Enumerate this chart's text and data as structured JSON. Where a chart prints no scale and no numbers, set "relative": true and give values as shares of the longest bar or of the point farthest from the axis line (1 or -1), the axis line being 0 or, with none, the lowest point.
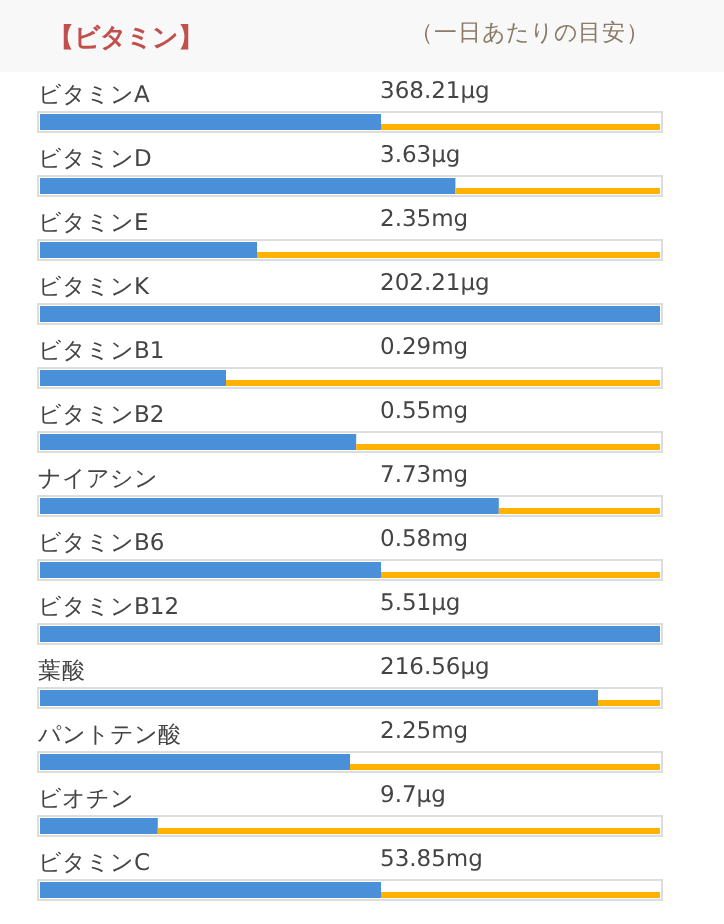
{
  "chart_data": {
    "type": "bar",
    "title": "【ビタミン】",
    "subtitle": "（一日あたりの目安）",
    "orientation": "horizontal",
    "relative": true,
    "stacked": true,
    "categories": [
      "ビタミンA",
      "ビタミンD",
      "ビタミンE",
      "ビタミンK",
      "ビタミンB1",
      "ビタミンB2",
      "ナイアシン",
      "ビタミンB6",
      "ビタミンB12",
      "葉酸",
      "パントテン酸",
      "ビオチン",
      "ビタミンC"
    ],
    "series": [
      {
        "color": "#4a90d9",
        "values": [
          0.55,
          0.67,
          0.35,
          1,
          0.3,
          0.51,
          0.74,
          0.55,
          1,
          0.9,
          0.5,
          0.19,
          0.55
        ]
      },
      {
        "color": "#ffb300",
        "values": [
          0.45,
          0.33,
          0.65,
          0,
          0.7,
          0.49,
          0.26,
          0.45,
          0,
          0.1,
          0.5,
          0.81,
          0.45
        ]
      }
    ],
    "annotations": [
      {
        "text": "368.21μg",
        "y": "ビタミンA"
      },
      {
        "text": "3.63μg",
        "y": "ビタミンD"
      },
      {
        "text": "2.35mg",
        "y": "ビタミンE"
      },
      {
        "text": "202.21μg",
        "y": "ビタミンK"
      },
      {
        "text": "0.29mg",
        "y": "ビタミンB1"
      },
      {
        "text": "0.55mg",
        "y": "ビタミンB2"
      },
      {
        "text": "7.73mg",
        "y": "ナイアシン"
      },
      {
        "text": "0.58mg",
        "y": "ビタミンB6"
      },
      {
        "text": "5.51μg",
        "y": "ビタミンB12"
      },
      {
        "text": "216.56μg",
        "y": "葉酸"
      },
      {
        "text": "2.25mg",
        "y": "パントテン酸"
      },
      {
        "text": "9.7μg",
        "y": "ビオチン"
      },
      {
        "text": "53.85mg",
        "y": "ビタミンC"
      }
    ]
  }
}
